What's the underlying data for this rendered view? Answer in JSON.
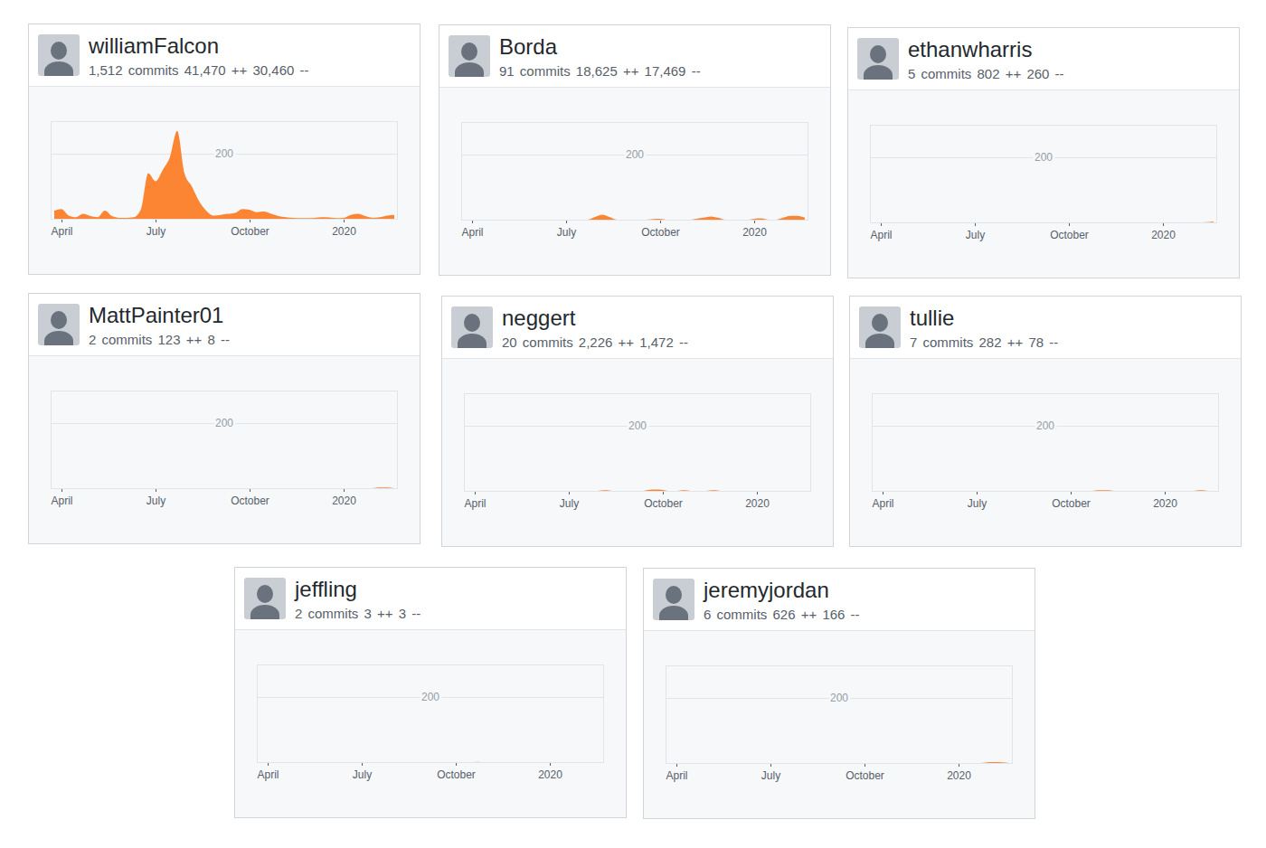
{
  "chart_data": [
    {
      "type": "area",
      "title": "williamFalcon",
      "subtitle": "1,512 commits 41,470 ++ 30,460 --",
      "color": "#fb8532",
      "grid": true,
      "categories": [
        null,
        "April",
        null,
        null,
        null,
        null,
        null,
        null,
        null,
        null,
        null,
        null,
        null,
        null,
        "July",
        null,
        null,
        null,
        null,
        null,
        null,
        null,
        null,
        null,
        null,
        null,
        null,
        "October",
        null,
        null,
        null,
        null,
        null,
        null,
        null,
        null,
        null,
        null,
        null,
        null,
        "2020",
        null,
        null,
        null,
        null,
        null,
        null,
        null
      ],
      "values": [
        25,
        30,
        10,
        5,
        15,
        8,
        5,
        25,
        8,
        3,
        3,
        5,
        30,
        140,
        115,
        150,
        190,
        270,
        140,
        100,
        55,
        25,
        10,
        12,
        15,
        18,
        30,
        28,
        20,
        22,
        15,
        8,
        5,
        3,
        2,
        2,
        3,
        5,
        4,
        2,
        3,
        12,
        15,
        8,
        3,
        5,
        10,
        12
      ],
      "ylim": [
        0,
        300
      ],
      "yticks": [
        200
      ]
    },
    {
      "type": "area",
      "title": "Borda",
      "subtitle": "91 commits 18,625 ++ 17,469 --",
      "color": "#fb8532",
      "grid": true,
      "categories": [
        null,
        "April",
        null,
        null,
        null,
        null,
        null,
        null,
        null,
        null,
        null,
        null,
        null,
        null,
        "July",
        null,
        null,
        null,
        null,
        null,
        null,
        null,
        null,
        null,
        null,
        null,
        null,
        "October",
        null,
        null,
        null,
        null,
        null,
        null,
        null,
        null,
        null,
        null,
        null,
        null,
        "2020",
        null,
        null,
        null,
        null,
        null,
        null,
        null
      ],
      "values": [
        0,
        0,
        0,
        0,
        0,
        0,
        0,
        0,
        0,
        0,
        0,
        0,
        0,
        0,
        0,
        0,
        0,
        0,
        8,
        15,
        8,
        0,
        0,
        0,
        0,
        0,
        2,
        3,
        0,
        0,
        0,
        0,
        3,
        6,
        10,
        6,
        0,
        0,
        0,
        0,
        3,
        4,
        0,
        0,
        6,
        12,
        12,
        6
      ],
      "ylim": [
        0,
        300
      ],
      "yticks": [
        200
      ]
    },
    {
      "type": "area",
      "title": "ethanwharris",
      "subtitle": "5 commits 802 ++ 260 --",
      "color": "#fb8532",
      "grid": true,
      "categories": [
        null,
        "April",
        null,
        null,
        null,
        null,
        null,
        null,
        null,
        null,
        null,
        null,
        null,
        null,
        "July",
        null,
        null,
        null,
        null,
        null,
        null,
        null,
        null,
        null,
        null,
        null,
        null,
        "October",
        null,
        null,
        null,
        null,
        null,
        null,
        null,
        null,
        null,
        null,
        null,
        null,
        "2020",
        null,
        null,
        null,
        null,
        null,
        null,
        null
      ],
      "values": [
        0,
        0,
        0,
        0,
        0,
        0,
        0,
        0,
        0,
        0,
        0,
        0,
        0,
        0,
        0,
        0,
        0,
        0,
        0,
        0,
        0,
        0,
        0,
        0,
        0,
        0,
        0,
        0,
        0,
        0,
        0,
        0,
        0,
        0,
        0,
        0,
        0,
        0,
        0,
        0,
        0,
        0,
        0,
        0,
        0,
        0,
        1,
        3
      ],
      "ylim": [
        0,
        300
      ],
      "yticks": [
        200
      ]
    },
    {
      "type": "area",
      "title": "MattPainter01",
      "subtitle": "2 commits 123 ++ 8 --",
      "color": "#fb8532",
      "grid": true,
      "categories": [
        null,
        "April",
        null,
        null,
        null,
        null,
        null,
        null,
        null,
        null,
        null,
        null,
        null,
        null,
        "July",
        null,
        null,
        null,
        null,
        null,
        null,
        null,
        null,
        null,
        null,
        null,
        null,
        "October",
        null,
        null,
        null,
        null,
        null,
        null,
        null,
        null,
        null,
        null,
        null,
        null,
        "2020",
        null,
        null,
        null,
        null,
        null,
        null,
        null
      ],
      "values": [
        0,
        0,
        0,
        0,
        0,
        0,
        0,
        0,
        0,
        0,
        0,
        0,
        0,
        0,
        0,
        0,
        0,
        0,
        0,
        0,
        0,
        0,
        0,
        0,
        0,
        0,
        0,
        0,
        0,
        0,
        0,
        0,
        0,
        0,
        0,
        0,
        0,
        0,
        0,
        0,
        0,
        0,
        0,
        0,
        0,
        2,
        2,
        0
      ],
      "ylim": [
        0,
        300
      ],
      "yticks": [
        200
      ]
    },
    {
      "type": "area",
      "title": "neggert",
      "subtitle": "20 commits 2,226 ++ 1,472 --",
      "color": "#fb8532",
      "grid": true,
      "categories": [
        null,
        "April",
        null,
        null,
        null,
        null,
        null,
        null,
        null,
        null,
        null,
        null,
        null,
        null,
        "July",
        null,
        null,
        null,
        null,
        null,
        null,
        null,
        null,
        null,
        null,
        null,
        null,
        "October",
        null,
        null,
        null,
        null,
        null,
        null,
        null,
        null,
        null,
        null,
        null,
        null,
        "2020",
        null,
        null,
        null,
        null,
        null,
        null,
        null
      ],
      "values": [
        0,
        0,
        0,
        0,
        0,
        0,
        0,
        0,
        0,
        0,
        0,
        0,
        0,
        0,
        0,
        0,
        0,
        0,
        0,
        2,
        0,
        0,
        0,
        0,
        0,
        3,
        4,
        3,
        0,
        0,
        2,
        0,
        0,
        0,
        2,
        0,
        0,
        0,
        0,
        0,
        0,
        0,
        0,
        0,
        0,
        0,
        0,
        0
      ],
      "ylim": [
        0,
        300
      ],
      "yticks": [
        200
      ]
    },
    {
      "type": "area",
      "title": "tullie",
      "subtitle": "7 commits 282 ++ 78 --",
      "color": "#fb8532",
      "grid": true,
      "categories": [
        null,
        "April",
        null,
        null,
        null,
        null,
        null,
        null,
        null,
        null,
        null,
        null,
        null,
        null,
        "July",
        null,
        null,
        null,
        null,
        null,
        null,
        null,
        null,
        null,
        null,
        null,
        null,
        "October",
        null,
        null,
        null,
        null,
        null,
        null,
        null,
        null,
        null,
        null,
        null,
        null,
        "2020",
        null,
        null,
        null,
        null,
        null,
        null,
        null
      ],
      "values": [
        0,
        0,
        0,
        0,
        0,
        0,
        0,
        0,
        0,
        0,
        0,
        0,
        0,
        0,
        0,
        0,
        0,
        0,
        0,
        0,
        0,
        0,
        0,
        0,
        0,
        0,
        0,
        0,
        0,
        0,
        0,
        2,
        2,
        0,
        0,
        0,
        0,
        0,
        0,
        0,
        0,
        0,
        0,
        0,
        0,
        2,
        0,
        0
      ],
      "ylim": [
        0,
        300
      ],
      "yticks": [
        200
      ]
    },
    {
      "type": "area",
      "title": "jeffling",
      "subtitle": "2 commits 3 ++ 3 --",
      "color": "#fb8532",
      "grid": true,
      "categories": [
        null,
        "April",
        null,
        null,
        null,
        null,
        null,
        null,
        null,
        null,
        null,
        null,
        null,
        null,
        "July",
        null,
        null,
        null,
        null,
        null,
        null,
        null,
        null,
        null,
        null,
        null,
        null,
        "October",
        null,
        null,
        null,
        null,
        null,
        null,
        null,
        null,
        null,
        null,
        null,
        null,
        "2020",
        null,
        null,
        null,
        null,
        null,
        null,
        null
      ],
      "values": [
        0,
        0,
        0,
        0,
        0,
        0,
        0,
        0,
        0,
        0,
        0,
        0,
        0,
        0,
        0,
        0,
        0,
        0,
        0,
        0,
        0,
        0,
        0,
        0,
        0,
        0,
        0,
        0,
        0,
        0,
        1,
        0,
        0,
        0,
        0,
        0,
        0,
        0,
        0,
        0,
        0,
        0,
        0,
        0,
        0,
        0,
        0,
        0
      ],
      "ylim": [
        0,
        300
      ],
      "yticks": [
        200
      ]
    },
    {
      "type": "area",
      "title": "jeremyjordan",
      "subtitle": "6 commits 626 ++ 166 --",
      "color": "#fb8532",
      "grid": true,
      "categories": [
        null,
        "April",
        null,
        null,
        null,
        null,
        null,
        null,
        null,
        null,
        null,
        null,
        null,
        null,
        "July",
        null,
        null,
        null,
        null,
        null,
        null,
        null,
        null,
        null,
        null,
        null,
        null,
        "October",
        null,
        null,
        null,
        null,
        null,
        null,
        null,
        null,
        null,
        null,
        null,
        null,
        "2020",
        null,
        null,
        null,
        null,
        null,
        null,
        null
      ],
      "values": [
        0,
        0,
        0,
        0,
        0,
        0,
        0,
        0,
        0,
        0,
        0,
        0,
        0,
        0,
        0,
        0,
        0,
        0,
        0,
        0,
        0,
        0,
        0,
        0,
        0,
        0,
        0,
        0,
        0,
        0,
        0,
        0,
        0,
        0,
        0,
        0,
        0,
        0,
        0,
        0,
        0,
        0,
        0,
        0,
        2,
        3,
        2,
        0
      ],
      "ylim": [
        0,
        300
      ],
      "yticks": [
        200
      ]
    }
  ]
}
